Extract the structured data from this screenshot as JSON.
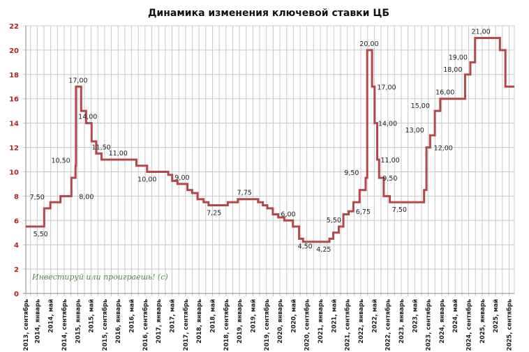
{
  "chart_data": {
    "type": "line",
    "step": true,
    "title": "Динамика изменения ключевой ставки ЦБ",
    "xlabel": "",
    "ylabel": "",
    "ylim": [
      0,
      22
    ],
    "y_ticks": [
      0,
      2,
      4,
      6,
      8,
      10,
      12,
      14,
      16,
      18,
      20,
      22
    ],
    "grid": true,
    "legend": "none",
    "line_color": "#b5474a",
    "x_tick_labels": [
      "2013, сентябрь",
      "2014, январь",
      "2014, май",
      "2014, сентябрь",
      "2015, январь",
      "2015, май",
      "2015, сентябрь",
      "2016, январь",
      "2016, май",
      "2016, сентябрь",
      "2017, январь",
      "2017, май",
      "2017, сентябрь",
      "2018, январь",
      "2018, май",
      "2018, сентябрь",
      "2019, январь",
      "2019, май",
      "2019, сентябрь",
      "2020, январь",
      "2020, май",
      "2020, сентябрь",
      "2021, январь",
      "2021, май",
      "2021, сентябрь",
      "2022, январь",
      "2022, май",
      "2022, сентябрь",
      "2023, январь",
      "2023, май",
      "2023, сентябрь",
      "2024, январь",
      "2024, май",
      "2024, сентябрь",
      "2025, январь",
      "2025, май",
      "2025, сентябрь"
    ],
    "series": [
      {
        "points": [
          [
            "2013-09-13",
            5.5
          ],
          [
            "2014-03-03",
            7.0
          ],
          [
            "2014-04-28",
            7.5
          ],
          [
            "2014-07-28",
            8.0
          ],
          [
            "2014-11-05",
            9.5
          ],
          [
            "2014-12-12",
            10.5
          ],
          [
            "2014-12-16",
            17.0
          ],
          [
            "2015-02-02",
            15.0
          ],
          [
            "2015-03-16",
            14.0
          ],
          [
            "2015-05-05",
            12.5
          ],
          [
            "2015-06-16",
            11.5
          ],
          [
            "2015-08-03",
            11.0
          ],
          [
            "2016-06-14",
            10.5
          ],
          [
            "2016-09-19",
            10.0
          ],
          [
            "2017-03-27",
            9.75
          ],
          [
            "2017-05-02",
            9.25
          ],
          [
            "2017-06-19",
            9.0
          ],
          [
            "2017-09-18",
            8.5
          ],
          [
            "2017-10-30",
            8.25
          ],
          [
            "2017-12-18",
            7.75
          ],
          [
            "2018-02-12",
            7.5
          ],
          [
            "2018-03-26",
            7.25
          ],
          [
            "2018-09-17",
            7.5
          ],
          [
            "2018-12-17",
            7.75
          ],
          [
            "2019-06-17",
            7.5
          ],
          [
            "2019-07-29",
            7.25
          ],
          [
            "2019-09-09",
            7.0
          ],
          [
            "2019-10-28",
            6.5
          ],
          [
            "2019-12-16",
            6.25
          ],
          [
            "2020-02-10",
            6.0
          ],
          [
            "2020-04-27",
            5.5
          ],
          [
            "2020-06-22",
            4.5
          ],
          [
            "2020-07-27",
            4.25
          ],
          [
            "2021-03-22",
            4.5
          ],
          [
            "2021-04-26",
            5.0
          ],
          [
            "2021-06-15",
            5.5
          ],
          [
            "2021-07-26",
            6.5
          ],
          [
            "2021-09-13",
            6.75
          ],
          [
            "2021-10-25",
            7.5
          ],
          [
            "2021-12-20",
            8.5
          ],
          [
            "2022-02-14",
            9.5
          ],
          [
            "2022-02-28",
            20.0
          ],
          [
            "2022-04-11",
            17.0
          ],
          [
            "2022-05-04",
            14.0
          ],
          [
            "2022-05-27",
            11.0
          ],
          [
            "2022-06-14",
            9.5
          ],
          [
            "2022-07-25",
            8.0
          ],
          [
            "2022-09-19",
            7.5
          ],
          [
            "2023-07-24",
            8.5
          ],
          [
            "2023-08-15",
            12.0
          ],
          [
            "2023-09-18",
            13.0
          ],
          [
            "2023-10-30",
            15.0
          ],
          [
            "2023-12-18",
            16.0
          ],
          [
            "2024-07-29",
            18.0
          ],
          [
            "2024-09-16",
            19.0
          ],
          [
            "2024-10-28",
            21.0
          ],
          [
            "2025-06-09",
            20.0
          ],
          [
            "2025-07-28",
            17.0
          ],
          [
            "2025-10-31",
            17.0
          ]
        ]
      }
    ],
    "data_labels": [
      {
        "text": "5,50",
        "date": "2014-02-01",
        "value": 5.5,
        "pos": "below"
      },
      {
        "text": "7,50",
        "date": "2014-04-01",
        "value": 7.5,
        "pos": "left"
      },
      {
        "text": "10,50",
        "date": "2014-11-20",
        "value": 10.5,
        "pos": "left"
      },
      {
        "text": "8,00",
        "date": "2014-12-12",
        "value": 8.0,
        "pos": "right"
      },
      {
        "text": "17,00",
        "date": "2015-01-05",
        "value": 17.0,
        "pos": "above"
      },
      {
        "text": "14,00",
        "date": "2015-04-01",
        "value": 14.0,
        "pos": "above"
      },
      {
        "text": "11,50",
        "date": "2015-08-01",
        "value": 11.5,
        "pos": "above"
      },
      {
        "text": "11,00",
        "date": "2016-01-01",
        "value": 11.0,
        "pos": "above"
      },
      {
        "text": "10,00",
        "date": "2016-09-19",
        "value": 10.0,
        "pos": "below"
      },
      {
        "text": "9,00",
        "date": "2017-08-01",
        "value": 9.0,
        "pos": "above"
      },
      {
        "text": "7,25",
        "date": "2018-05-15",
        "value": 7.25,
        "pos": "below"
      },
      {
        "text": "7,75",
        "date": "2019-02-15",
        "value": 7.75,
        "pos": "above"
      },
      {
        "text": "6,00",
        "date": "2020-03-15",
        "value": 6.0,
        "pos": "above"
      },
      {
        "text": "4,50",
        "date": "2020-08-15",
        "value": 4.5,
        "pos": "below"
      },
      {
        "text": "4,25",
        "date": "2021-02-01",
        "value": 4.25,
        "pos": "below"
      },
      {
        "text": "5,50",
        "date": "2021-05-01",
        "value": 5.5,
        "pos": "above"
      },
      {
        "text": "6,75",
        "date": "2021-10-15",
        "value": 6.75,
        "pos": "right"
      },
      {
        "text": "9,50",
        "date": "2022-01-10",
        "value": 9.5,
        "pos": "left"
      },
      {
        "text": "20,00",
        "date": "2022-03-15",
        "value": 20.0,
        "pos": "above"
      },
      {
        "text": "17,00",
        "date": "2022-04-25",
        "value": 17.0,
        "pos": "right"
      },
      {
        "text": "14,00",
        "date": "2022-05-04",
        "value": 14.0,
        "pos": "right"
      },
      {
        "text": "11,00",
        "date": "2022-05-27",
        "value": 11.0,
        "pos": "right"
      },
      {
        "text": "9,50",
        "date": "2022-06-14",
        "value": 9.5,
        "pos": "right"
      },
      {
        "text": "7,50",
        "date": "2022-12-15",
        "value": 7.5,
        "pos": "below"
      },
      {
        "text": "13,00",
        "date": "2023-08-20",
        "value": 13.0,
        "pos": "left"
      },
      {
        "text": "15,00",
        "date": "2023-10-10",
        "value": 15.0,
        "pos": "left"
      },
      {
        "text": "12,00",
        "date": "2023-09-20",
        "value": 12.0,
        "pos": "right"
      },
      {
        "text": "16,00",
        "date": "2024-02-01",
        "value": 16.0,
        "pos": "above"
      },
      {
        "text": "18,00",
        "date": "2024-07-29",
        "value": 18.0,
        "pos": "left"
      },
      {
        "text": "19,00",
        "date": "2024-09-16",
        "value": 19.0,
        "pos": "left"
      },
      {
        "text": "21,00",
        "date": "2024-12-20",
        "value": 21.0,
        "pos": "above"
      }
    ]
  },
  "watermark": "Инвестируй или проиграешь! (с)"
}
